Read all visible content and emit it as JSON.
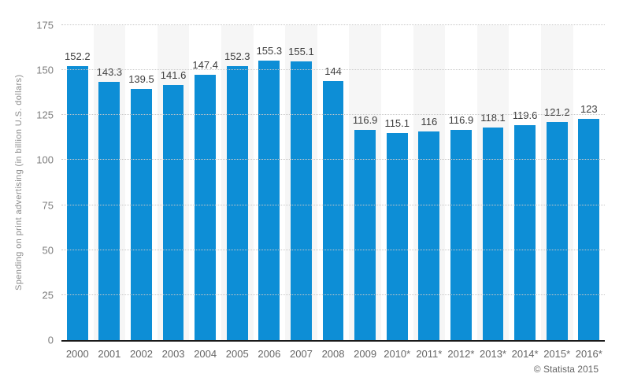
{
  "credit": "© Statista 2015",
  "colors": {
    "bar": "#0d8ed6",
    "stripe": "#f6f6f6",
    "grid": "#c8c8c8",
    "axis": "#1a1a1a",
    "ytick": "#7d7d7d",
    "xtick": "#666666",
    "value": "#3d3d3d",
    "ylabel": "#8c8c8c",
    "credit": "#666666"
  },
  "chart_data": {
    "type": "bar",
    "title": "",
    "xlabel": "",
    "ylabel": "Spending on print advertising (in billion U.S. dollars)",
    "categories": [
      "2000",
      "2001",
      "2002",
      "2003",
      "2004",
      "2005",
      "2006",
      "2007",
      "2008",
      "2009",
      "2010*",
      "2011*",
      "2012*",
      "2013*",
      "2014*",
      "2015*",
      "2016*"
    ],
    "values": [
      152.2,
      143.3,
      139.5,
      141.6,
      147.4,
      152.3,
      155.3,
      155.1,
      144,
      116.9,
      115.1,
      116,
      116.9,
      118.1,
      119.6,
      121.2,
      123
    ],
    "value_labels": [
      "152.2",
      "143.3",
      "139.5",
      "141.6",
      "147.4",
      "152.3",
      "155.3",
      "155.1",
      "144",
      "116.9",
      "115.1",
      "116",
      "116.9",
      "118.1",
      "119.6",
      "121.2",
      "123"
    ],
    "ylim": [
      0,
      175
    ],
    "yticks": [
      0,
      25,
      50,
      75,
      100,
      125,
      150,
      175
    ],
    "grid": "horizontal-dotted",
    "legend": "none",
    "striped_columns": "alternating"
  }
}
